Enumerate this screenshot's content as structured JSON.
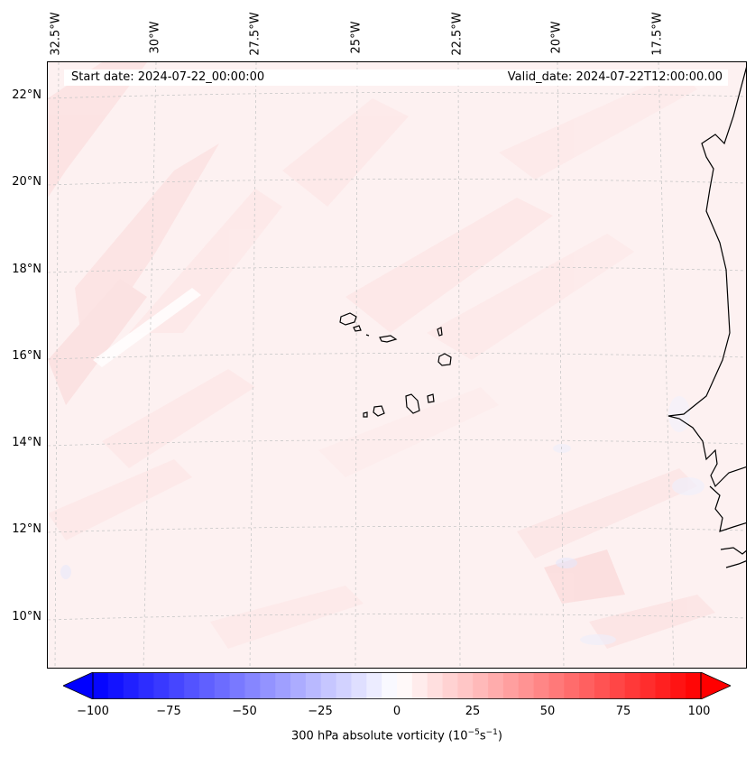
{
  "header": {
    "start_date": "Start date: 2024-07-22_00:00:00",
    "valid_date": "Valid_date: 2024-07-22T12:00:00.00"
  },
  "map": {
    "longitude_labels": [
      "32.5°W",
      "30°W",
      "27.5°W",
      "25°W",
      "22.5°W",
      "20°W",
      "17.5°W"
    ],
    "latitude_labels": [
      "22°N",
      "20°N",
      "18°N",
      "16°N",
      "14°N",
      "12°N",
      "10°N"
    ],
    "field": "300 hPa absolute vorticity",
    "background_tint": "#fdf3f3",
    "coastline_color": "#000000",
    "gridline_color": "#c8c8c8"
  },
  "colorbar": {
    "ticks": [
      "−100",
      "−75",
      "−50",
      "−25",
      "0",
      "25",
      "50",
      "75",
      "100"
    ],
    "label_main": "300 hPa absolute vorticity (10",
    "label_exp1": "−5",
    "label_mid": "s",
    "label_exp2": "−1",
    "label_end": ")",
    "min": -100,
    "max": 100,
    "colors": {
      "negative": "#0000ff",
      "zero": "#ffffff",
      "positive": "#ff0000"
    }
  }
}
